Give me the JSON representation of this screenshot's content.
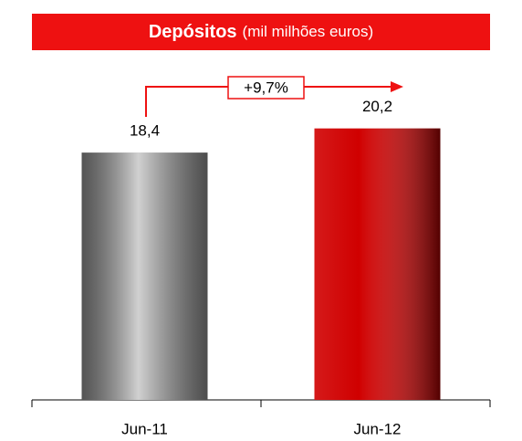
{
  "chart_data": {
    "type": "bar",
    "title": "Depósitos",
    "subtitle": "(mil milhões euros)",
    "categories": [
      "Jun-11",
      "Jun-12"
    ],
    "values": [
      18.4,
      20.2
    ],
    "value_labels": [
      "18,4",
      "20,2"
    ],
    "colors": [
      "#8c8c8c",
      "#d00000"
    ],
    "annotation": "+9,7%",
    "ylim": [
      0,
      25
    ]
  }
}
